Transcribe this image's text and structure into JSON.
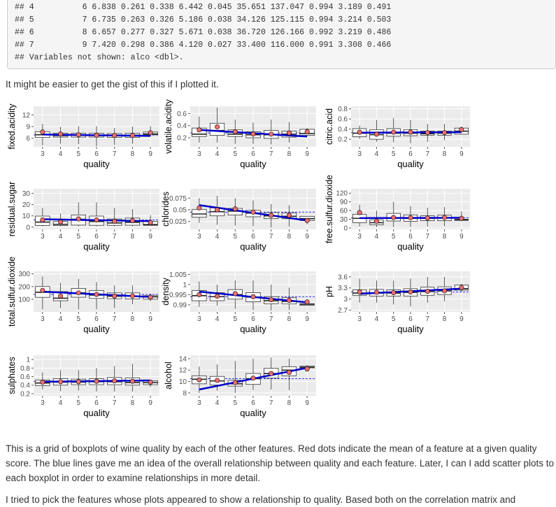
{
  "code_output": {
    "lines": [
      "## 4          6 6.838 0.261 0.338 6.442 0.045 35.651 137.047 0.994 3.189 0.491",
      "## 5          7 6.735 0.263 0.326 5.186 0.038 34.126 125.115 0.994 3.214 0.503",
      "## 6          8 6.657 0.277 0.327 5.671 0.038 36.720 126.166 0.992 3.219 0.486",
      "## 7          9 7.420 0.298 0.386 4.120 0.027 33.400 116.000 0.991 3.308 0.466",
      "## Variables not shown: alco <dbl>."
    ]
  },
  "intro_text": "It might be easier to get the gist of this if I plotted it.",
  "colors": {
    "panel_bg": "#ebebeb",
    "trend_line": "#0000cc",
    "mean_dot": "#ef6f6f",
    "overall_mean": "#3333ff"
  },
  "chart_data": [
    {
      "type": "box",
      "ylabel": "fixed.acidity",
      "xlabel": "quality",
      "x": [
        3,
        4,
        5,
        6,
        7,
        8,
        9
      ],
      "yticks": [
        6,
        9,
        12
      ],
      "ylim": [
        3.8,
        14.2
      ],
      "medians": [
        6.9,
        6.7,
        6.8,
        6.7,
        6.7,
        6.8,
        7.1
      ],
      "q1": [
        6.2,
        6.3,
        6.3,
        6.3,
        6.2,
        6.2,
        6.9
      ],
      "q3": [
        7.7,
        7.3,
        7.3,
        7.3,
        7.2,
        7.3,
        7.6
      ],
      "whisk_lo": [
        4.2,
        4.6,
        4.5,
        4.0,
        4.3,
        4.6,
        6.6
      ],
      "whisk_hi": [
        9.7,
        8.9,
        9.1,
        9.1,
        8.6,
        9.0,
        9.1
      ],
      "means": [
        7.6,
        7.1,
        6.9,
        6.8,
        6.7,
        6.7,
        7.4
      ],
      "overall_mean": 6.85,
      "trend": [
        6.95,
        6.6
      ]
    },
    {
      "type": "box",
      "ylabel": "volatile.acidity",
      "xlabel": "quality",
      "x": [
        3,
        4,
        5,
        6,
        7,
        8,
        9
      ],
      "yticks": [
        0.2,
        0.4,
        0.6
      ],
      "ylim": [
        0.05,
        0.72
      ],
      "medians": [
        0.26,
        0.32,
        0.26,
        0.25,
        0.25,
        0.26,
        0.27
      ],
      "q1": [
        0.22,
        0.24,
        0.22,
        0.2,
        0.19,
        0.21,
        0.24
      ],
      "q3": [
        0.36,
        0.44,
        0.33,
        0.3,
        0.32,
        0.31,
        0.34
      ],
      "whisk_lo": [
        0.12,
        0.12,
        0.1,
        0.1,
        0.09,
        0.12,
        0.24
      ],
      "whisk_hi": [
        0.55,
        0.7,
        0.5,
        0.45,
        0.5,
        0.46,
        0.36
      ],
      "means": [
        0.33,
        0.38,
        0.3,
        0.26,
        0.26,
        0.28,
        0.3
      ],
      "overall_mean": 0.28,
      "trend": [
        0.33,
        0.22
      ]
    },
    {
      "type": "box",
      "ylabel": "citric.acid",
      "xlabel": "quality",
      "x": [
        3,
        4,
        5,
        6,
        7,
        8,
        9
      ],
      "yticks": [
        0.2,
        0.4,
        0.6,
        0.8
      ],
      "ylim": [
        0.05,
        0.85
      ],
      "medians": [
        0.32,
        0.29,
        0.32,
        0.32,
        0.31,
        0.32,
        0.36
      ],
      "q1": [
        0.25,
        0.2,
        0.26,
        0.27,
        0.28,
        0.28,
        0.3
      ],
      "q3": [
        0.41,
        0.39,
        0.41,
        0.39,
        0.36,
        0.36,
        0.42
      ],
      "whisk_lo": [
        0.21,
        0.15,
        0.14,
        0.12,
        0.15,
        0.18,
        0.29
      ],
      "whisk_hi": [
        0.47,
        0.58,
        0.62,
        0.58,
        0.5,
        0.5,
        0.45
      ],
      "means": [
        0.34,
        0.3,
        0.34,
        0.34,
        0.33,
        0.33,
        0.39
      ],
      "overall_mean": 0.33,
      "trend": [
        0.33,
        0.34
      ]
    },
    {
      "type": "box",
      "ylabel": "residual.sugar",
      "xlabel": "quality",
      "x": [
        3,
        4,
        5,
        6,
        7,
        8,
        9
      ],
      "yticks": [
        0,
        10,
        20,
        30
      ],
      "ylim": [
        -2,
        34
      ],
      "medians": [
        4.5,
        2.5,
        7.0,
        5.0,
        3.7,
        4.3,
        2.2
      ],
      "q1": [
        1.5,
        1.4,
        1.8,
        1.6,
        1.6,
        1.7,
        1.6
      ],
      "q3": [
        9.8,
        5.0,
        10.8,
        9.8,
        7.2,
        8.0,
        5.0
      ],
      "whisk_lo": [
        0.7,
        0.8,
        0.7,
        0.7,
        0.7,
        0.8,
        1.6
      ],
      "whisk_hi": [
        17,
        12,
        22,
        22,
        17,
        16,
        10.6
      ],
      "means": [
        6.4,
        4.6,
        7.3,
        6.4,
        5.2,
        5.7,
        4.1
      ],
      "overall_mean": 6.4,
      "trend": [
        7.0,
        5.3
      ]
    },
    {
      "type": "box",
      "ylabel": "chlorides",
      "xlabel": "quality",
      "x": [
        3,
        4,
        5,
        6,
        7,
        8,
        9
      ],
      "yticks": [
        0.025,
        0.05,
        0.075
      ],
      "ylim": [
        0.008,
        0.095
      ],
      "medians": [
        0.041,
        0.046,
        0.047,
        0.043,
        0.037,
        0.036,
        0.031
      ],
      "q1": [
        0.034,
        0.037,
        0.039,
        0.035,
        0.031,
        0.031,
        0.027
      ],
      "q3": [
        0.051,
        0.054,
        0.053,
        0.049,
        0.044,
        0.043,
        0.036
      ],
      "whisk_lo": [
        0.022,
        0.018,
        0.016,
        0.015,
        0.012,
        0.014,
        0.019
      ],
      "whisk_hi": [
        0.075,
        0.08,
        0.075,
        0.07,
        0.062,
        0.06,
        0.036
      ],
      "means": [
        0.054,
        0.05,
        0.052,
        0.045,
        0.038,
        0.038,
        0.027
      ],
      "overall_mean": 0.045,
      "trend": [
        0.06,
        0.027
      ]
    },
    {
      "type": "box",
      "ylabel": "free.sulfur.dioxide",
      "xlabel": "quality",
      "x": [
        3,
        4,
        5,
        6,
        7,
        8,
        9
      ],
      "yticks": [
        0,
        30,
        60,
        90,
        120
      ],
      "ylim": [
        -5,
        135
      ],
      "medians": [
        33,
        18,
        35,
        33,
        33,
        35,
        28
      ],
      "q1": [
        18,
        11,
        24,
        23,
        25,
        25,
        26
      ],
      "q3": [
        47,
        28,
        50,
        45,
        42,
        44,
        30
      ],
      "whisk_lo": [
        5,
        3,
        3,
        3,
        5,
        6,
        24
      ],
      "whisk_hi": [
        80,
        60,
        90,
        75,
        70,
        72,
        57
      ],
      "means": [
        53,
        23,
        36,
        35,
        34,
        36,
        33
      ],
      "overall_mean": 35,
      "trend": [
        34,
        35
      ]
    },
    {
      "type": "box",
      "ylabel": "total.sulfur.dioxide",
      "xlabel": "quality",
      "x": [
        3,
        4,
        5,
        6,
        7,
        8,
        9
      ],
      "yticks": [
        100,
        200,
        300
      ],
      "ylim": [
        0,
        320
      ],
      "medians": [
        155,
        108,
        150,
        133,
        124,
        125,
        119
      ],
      "q1": [
        115,
        88,
        116,
        106,
        104,
        102,
        100
      ],
      "q3": [
        200,
        160,
        185,
        168,
        150,
        150,
        128
      ],
      "whisk_lo": [
        20,
        30,
        20,
        20,
        30,
        60,
        85
      ],
      "whisk_hi": [
        280,
        230,
        260,
        235,
        210,
        210,
        145
      ],
      "means": [
        170,
        125,
        150,
        138,
        125,
        126,
        116
      ],
      "overall_mean": 138,
      "trend": [
        160,
        118
      ]
    },
    {
      "type": "box",
      "ylabel": "density",
      "xlabel": "quality",
      "x": [
        3,
        4,
        5,
        6,
        7,
        8,
        9
      ],
      "yticks": [
        0.99,
        0.995,
        1.0,
        1.005
      ],
      "ylim": [
        0.9865,
        1.0065
      ],
      "medians": [
        0.9945,
        0.994,
        0.995,
        0.9938,
        0.992,
        0.9917,
        0.9903
      ],
      "q1": [
        0.992,
        0.992,
        0.9928,
        0.9915,
        0.9905,
        0.9904,
        0.9898
      ],
      "q3": [
        0.997,
        0.996,
        0.9975,
        0.996,
        0.994,
        0.9935,
        0.9905
      ],
      "whisk_lo": [
        0.989,
        0.9895,
        0.988,
        0.9875,
        0.9872,
        0.9875,
        0.9896
      ],
      "whisk_hi": [
        1.0015,
        1.0,
        1.002,
        1.002,
        1.0,
        0.9985,
        0.991
      ],
      "means": [
        0.995,
        0.9942,
        0.9955,
        0.994,
        0.9925,
        0.9922,
        0.9914
      ],
      "overall_mean": 0.994,
      "trend": [
        0.9965,
        0.9912
      ]
    },
    {
      "type": "box",
      "ylabel": "pH",
      "xlabel": "quality",
      "x": [
        3,
        4,
        5,
        6,
        7,
        8,
        9
      ],
      "yticks": [
        2.7,
        3.0,
        3.3,
        3.6
      ],
      "ylim": [
        2.65,
        3.75
      ],
      "medians": [
        3.16,
        3.16,
        3.16,
        3.18,
        3.2,
        3.22,
        3.28
      ],
      "q1": [
        3.1,
        3.08,
        3.08,
        3.08,
        3.1,
        3.12,
        3.24
      ],
      "q3": [
        3.25,
        3.26,
        3.25,
        3.28,
        3.32,
        3.33,
        3.38
      ],
      "whisk_lo": [
        2.9,
        2.9,
        2.85,
        2.8,
        2.9,
        2.94,
        3.2
      ],
      "whisk_hi": [
        3.55,
        3.5,
        3.5,
        3.55,
        3.6,
        3.6,
        3.41
      ],
      "means": [
        3.19,
        3.18,
        3.17,
        3.19,
        3.21,
        3.22,
        3.31
      ],
      "overall_mean": 3.19,
      "trend": [
        3.14,
        3.28
      ]
    },
    {
      "type": "box",
      "ylabel": "sulphates",
      "xlabel": "quality",
      "x": [
        3,
        4,
        5,
        6,
        7,
        8,
        9
      ],
      "yticks": [
        0.2,
        0.4,
        0.6,
        0.8,
        1.0
      ],
      "ylim": [
        0.15,
        1.1
      ],
      "medians": [
        0.45,
        0.47,
        0.47,
        0.48,
        0.48,
        0.46,
        0.46
      ],
      "q1": [
        0.39,
        0.4,
        0.41,
        0.41,
        0.41,
        0.4,
        0.41
      ],
      "q3": [
        0.52,
        0.55,
        0.54,
        0.55,
        0.58,
        0.57,
        0.5
      ],
      "whisk_lo": [
        0.3,
        0.26,
        0.27,
        0.25,
        0.25,
        0.25,
        0.36
      ],
      "whisk_hi": [
        0.7,
        0.75,
        0.75,
        0.8,
        0.85,
        0.9,
        0.5
      ],
      "means": [
        0.47,
        0.48,
        0.48,
        0.49,
        0.5,
        0.49,
        0.47
      ],
      "overall_mean": 0.49,
      "trend": [
        0.48,
        0.51
      ]
    },
    {
      "type": "box",
      "ylabel": "alcohol",
      "xlabel": "quality",
      "x": [
        3,
        4,
        5,
        6,
        7,
        8,
        9
      ],
      "yticks": [
        8,
        10,
        12,
        14
      ],
      "ylim": [
        7.5,
        14.6
      ],
      "medians": [
        10.4,
        10.1,
        9.6,
        10.5,
        11.4,
        12.0,
        12.5
      ],
      "q1": [
        9.6,
        9.4,
        9.2,
        9.5,
        10.6,
        11.0,
        12.4
      ],
      "q3": [
        11.0,
        10.9,
        10.2,
        11.4,
        12.3,
        12.6,
        12.7
      ],
      "whisk_lo": [
        8.0,
        8.4,
        8.0,
        8.5,
        8.6,
        8.5,
        12.0
      ],
      "whisk_hi": [
        12.6,
        13.0,
        13.6,
        14.0,
        14.2,
        14.0,
        12.9
      ],
      "means": [
        10.3,
        10.2,
        9.8,
        10.6,
        11.4,
        11.6,
        12.2
      ],
      "overall_mean": 10.5,
      "trend": [
        8.6,
        12.4
      ]
    }
  ],
  "description_text": "This is a grid of boxplots of wine quality by each of the other features. Red dots indicate the mean of a feature at a given quality score. The blue lines gave me an idea of the overall relationship between quality and each feature. Later, I can I add scatter plots to each boxplot in order to examine relationships in more detail.",
  "trailing_text": "I tried to pick the features whose plots appeared to show a relationship to quality. Based both on the correlation matrix and"
}
